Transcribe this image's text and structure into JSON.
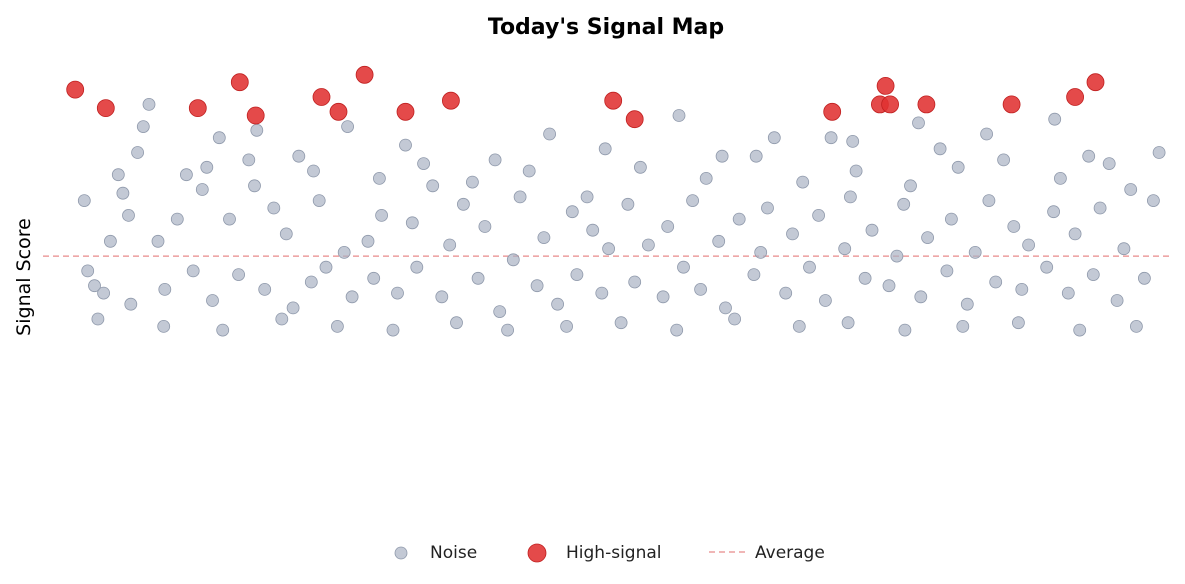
{
  "chart_data": {
    "type": "scatter",
    "title": "Today's Signal Map",
    "xlabel": "",
    "ylabel": "Signal Score",
    "xlim": [
      0,
      100
    ],
    "ylim": [
      0,
      100
    ],
    "grid": false,
    "legend_position": "bottom-center",
    "average": 47,
    "series": [
      {
        "name": "Noise",
        "color": "#a9b2c3",
        "points": [
          [
            4.2,
            43
          ],
          [
            4.8,
            39
          ],
          [
            5.6,
            37
          ],
          [
            6.2,
            51
          ],
          [
            6.9,
            69
          ],
          [
            7.3,
            64
          ],
          [
            8.0,
            34
          ],
          [
            9.1,
            82
          ],
          [
            10.4,
            51
          ],
          [
            11.0,
            38
          ],
          [
            12.1,
            57
          ],
          [
            13.5,
            43
          ],
          [
            14.3,
            65
          ],
          [
            15.2,
            35
          ],
          [
            16.7,
            57
          ],
          [
            17.5,
            42
          ],
          [
            18.4,
            73
          ],
          [
            19.8,
            38
          ],
          [
            20.6,
            60
          ],
          [
            21.7,
            53
          ],
          [
            22.3,
            33
          ],
          [
            23.9,
            40
          ],
          [
            24.6,
            62
          ],
          [
            25.2,
            44
          ],
          [
            26.8,
            48
          ],
          [
            27.5,
            36
          ],
          [
            28.9,
            51
          ],
          [
            29.4,
            41
          ],
          [
            30.1,
            58
          ],
          [
            31.5,
            37
          ],
          [
            32.8,
            56
          ],
          [
            33.2,
            44
          ],
          [
            34.6,
            66
          ],
          [
            35.4,
            36
          ],
          [
            36.1,
            50
          ],
          [
            37.3,
            61
          ],
          [
            38.6,
            41
          ],
          [
            39.2,
            55
          ],
          [
            40.5,
            32
          ],
          [
            41.7,
            46
          ],
          [
            42.3,
            63
          ],
          [
            43.8,
            39
          ],
          [
            44.4,
            52
          ],
          [
            45.6,
            34
          ],
          [
            46.9,
            59
          ],
          [
            47.3,
            42
          ],
          [
            48.7,
            54
          ],
          [
            49.5,
            37
          ],
          [
            50.1,
            49
          ],
          [
            51.8,
            61
          ],
          [
            52.4,
            40
          ],
          [
            53.6,
            50
          ],
          [
            54.9,
            36
          ],
          [
            55.3,
            55
          ],
          [
            56.7,
            44
          ],
          [
            57.5,
            62
          ],
          [
            58.2,
            38
          ],
          [
            59.8,
            51
          ],
          [
            60.4,
            33
          ],
          [
            61.6,
            57
          ],
          [
            62.9,
            42
          ],
          [
            63.5,
            48
          ],
          [
            64.1,
            60
          ],
          [
            65.7,
            37
          ],
          [
            66.3,
            53
          ],
          [
            67.8,
            44
          ],
          [
            68.6,
            58
          ],
          [
            69.2,
            35
          ],
          [
            70.9,
            49
          ],
          [
            71.4,
            63
          ],
          [
            72.7,
            41
          ],
          [
            73.3,
            54
          ],
          [
            74.8,
            39
          ],
          [
            75.5,
            47
          ],
          [
            76.1,
            61
          ],
          [
            77.6,
            36
          ],
          [
            78.2,
            52
          ],
          [
            79.9,
            43
          ],
          [
            80.3,
            57
          ],
          [
            81.7,
            34
          ],
          [
            82.4,
            48
          ],
          [
            83.6,
            62
          ],
          [
            84.2,
            40
          ],
          [
            85.8,
            55
          ],
          [
            86.5,
            38
          ],
          [
            87.1,
            50
          ],
          [
            88.7,
            44
          ],
          [
            89.3,
            59
          ],
          [
            90.6,
            37
          ],
          [
            91.2,
            53
          ],
          [
            92.8,
            42
          ],
          [
            93.4,
            60
          ],
          [
            94.9,
            35
          ],
          [
            95.5,
            49
          ],
          [
            96.1,
            65
          ],
          [
            97.3,
            41
          ],
          [
            3.9,
            62
          ],
          [
            7.8,
            58
          ],
          [
            12.9,
            69
          ],
          [
            18.9,
            66
          ],
          [
            24.1,
            70
          ],
          [
            29.9,
            68
          ],
          [
            33.8,
            72
          ],
          [
            38.1,
            67
          ],
          [
            43.1,
            70
          ],
          [
            48.2,
            63
          ],
          [
            52.9,
            71
          ],
          [
            58.7,
            68
          ],
          [
            63.1,
            74
          ],
          [
            67.2,
            67
          ],
          [
            71.9,
            70
          ],
          [
            76.7,
            66
          ],
          [
            80.9,
            71
          ],
          [
            84.9,
            73
          ],
          [
            89.9,
            68
          ],
          [
            94.2,
            72
          ],
          [
            98.1,
            62
          ],
          [
            5.1,
            30
          ],
          [
            10.9,
            28
          ],
          [
            16.1,
            27
          ],
          [
            21.3,
            30
          ],
          [
            26.2,
            28
          ],
          [
            31.1,
            27
          ],
          [
            36.7,
            29
          ],
          [
            41.2,
            27
          ],
          [
            46.4,
            28
          ],
          [
            51.2,
            29
          ],
          [
            56.1,
            27
          ],
          [
            61.2,
            30
          ],
          [
            66.9,
            28
          ],
          [
            71.2,
            29
          ],
          [
            76.2,
            27
          ],
          [
            81.3,
            28
          ],
          [
            86.2,
            29
          ],
          [
            91.6,
            27
          ],
          [
            96.6,
            28
          ],
          [
            9.6,
            88
          ],
          [
            15.8,
            79
          ],
          [
            19.1,
            81
          ],
          [
            27.1,
            82
          ],
          [
            44.9,
            80
          ],
          [
            56.3,
            85
          ],
          [
            64.7,
            79
          ],
          [
            71.6,
            78
          ],
          [
            77.4,
            83
          ],
          [
            83.4,
            80
          ],
          [
            89.4,
            84
          ],
          [
            8.6,
            75
          ],
          [
            14.7,
            71
          ],
          [
            22.8,
            74
          ],
          [
            32.2,
            77
          ],
          [
            40.1,
            73
          ],
          [
            49.8,
            76
          ],
          [
            60.1,
            74
          ],
          [
            69.7,
            79
          ],
          [
            79.3,
            76
          ],
          [
            92.4,
            74
          ],
          [
            98.6,
            75
          ]
        ]
      },
      {
        "name": "High-signal",
        "color": "#e03131",
        "points": [
          [
            3.1,
            92
          ],
          [
            5.8,
            87
          ],
          [
            13.9,
            87
          ],
          [
            17.6,
            94
          ],
          [
            19.0,
            85
          ],
          [
            24.8,
            90
          ],
          [
            26.3,
            86
          ],
          [
            28.6,
            96
          ],
          [
            32.2,
            86
          ],
          [
            36.2,
            89
          ],
          [
            50.5,
            89
          ],
          [
            52.4,
            84
          ],
          [
            69.8,
            86
          ],
          [
            74.0,
            88
          ],
          [
            74.5,
            93
          ],
          [
            74.9,
            88
          ],
          [
            78.1,
            88
          ],
          [
            85.6,
            88
          ],
          [
            91.2,
            90
          ],
          [
            93.0,
            94
          ]
        ]
      },
      {
        "name": "Average",
        "color": "#e88a8a"
      }
    ]
  }
}
